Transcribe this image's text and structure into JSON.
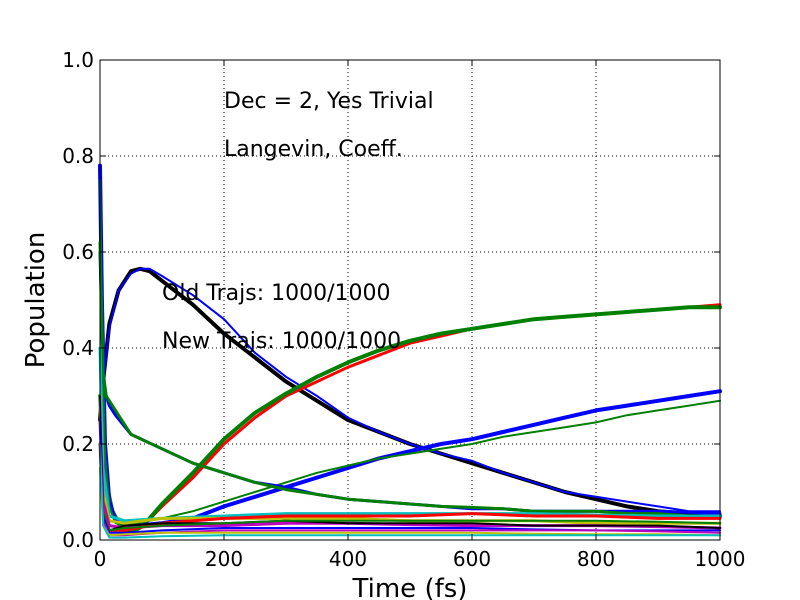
{
  "chart_data": {
    "type": "line",
    "title": "",
    "xlabel": "Time (fs)",
    "ylabel": "Population",
    "xlim": [
      0,
      1000
    ],
    "ylim": [
      0,
      1.0
    ],
    "xticks": [
      0,
      200,
      400,
      600,
      800,
      1000
    ],
    "yticks": [
      0.0,
      0.2,
      0.4,
      0.6,
      0.8,
      1.0
    ],
    "ytick_labels": [
      "0.0",
      "0.2",
      "0.4",
      "0.6",
      "0.8",
      "1.0"
    ],
    "grid": true,
    "annotations": [
      {
        "text": "Dec = 2, Yes Trivial",
        "x": 200,
        "y": 0.9
      },
      {
        "text": "Langevin, Coeff.",
        "x": 200,
        "y": 0.8
      },
      {
        "text": "Old Trajs: 1000/1000",
        "x": 100,
        "y": 0.5
      },
      {
        "text": "New Trajs: 1000/1000",
        "x": 100,
        "y": 0.4
      }
    ],
    "series": [
      {
        "color": "#000000",
        "width": 4,
        "x": [
          0,
          5,
          15,
          30,
          50,
          65,
          80,
          100,
          150,
          200,
          250,
          300,
          350,
          400,
          450,
          500,
          550,
          600,
          650,
          700,
          750,
          800,
          850,
          900,
          950,
          1000
        ],
        "y": [
          0.25,
          0.33,
          0.45,
          0.52,
          0.56,
          0.565,
          0.56,
          0.54,
          0.49,
          0.43,
          0.38,
          0.33,
          0.29,
          0.25,
          0.225,
          0.2,
          0.18,
          0.16,
          0.14,
          0.12,
          0.1,
          0.085,
          0.07,
          0.06,
          0.055,
          0.05
        ]
      },
      {
        "color": "#0000ff",
        "width": 2,
        "x": [
          0,
          5,
          15,
          30,
          50,
          65,
          80,
          100,
          150,
          200,
          250,
          300,
          350,
          400,
          450,
          500,
          550,
          600,
          650,
          700,
          750,
          800,
          850,
          900,
          950,
          1000
        ],
        "y": [
          0.24,
          0.32,
          0.44,
          0.52,
          0.555,
          0.565,
          0.565,
          0.55,
          0.51,
          0.46,
          0.39,
          0.34,
          0.3,
          0.255,
          0.225,
          0.2,
          0.18,
          0.165,
          0.14,
          0.12,
          0.1,
          0.09,
          0.08,
          0.07,
          0.06,
          0.06
        ]
      },
      {
        "color": "#ff0000",
        "width": 3,
        "x": [
          0,
          5,
          10,
          20,
          35,
          50,
          70,
          100,
          150,
          200,
          250,
          300,
          350,
          400,
          450,
          500,
          550,
          600,
          650,
          700,
          750,
          800,
          850,
          900,
          950,
          1000
        ],
        "y": [
          0.3,
          0.2,
          0.12,
          0.06,
          0.02,
          0.015,
          0.03,
          0.07,
          0.13,
          0.2,
          0.255,
          0.3,
          0.33,
          0.36,
          0.385,
          0.41,
          0.425,
          0.44,
          0.45,
          0.46,
          0.465,
          0.47,
          0.475,
          0.48,
          0.485,
          0.49
        ]
      },
      {
        "color": "#008000",
        "width": 4,
        "x": [
          0,
          5,
          10,
          20,
          35,
          50,
          70,
          100,
          150,
          200,
          250,
          300,
          350,
          400,
          450,
          500,
          550,
          600,
          650,
          700,
          750,
          800,
          850,
          900,
          950,
          1000
        ],
        "y": [
          0.3,
          0.2,
          0.12,
          0.06,
          0.025,
          0.015,
          0.03,
          0.075,
          0.14,
          0.21,
          0.265,
          0.305,
          0.34,
          0.37,
          0.395,
          0.415,
          0.43,
          0.44,
          0.45,
          0.46,
          0.465,
          0.47,
          0.475,
          0.48,
          0.485,
          0.485
        ]
      },
      {
        "color": "#0000ff",
        "width": 4,
        "x": [
          0,
          3,
          8,
          15,
          25,
          40,
          60,
          100,
          150,
          200,
          250,
          300,
          350,
          400,
          450,
          500,
          550,
          600,
          650,
          700,
          750,
          800,
          850,
          900,
          950,
          1000
        ],
        "y": [
          0.78,
          0.5,
          0.2,
          0.08,
          0.04,
          0.03,
          0.03,
          0.035,
          0.045,
          0.07,
          0.09,
          0.11,
          0.13,
          0.15,
          0.17,
          0.185,
          0.2,
          0.21,
          0.225,
          0.24,
          0.255,
          0.27,
          0.28,
          0.29,
          0.3,
          0.31
        ]
      },
      {
        "color": "#008000",
        "width": 2,
        "x": [
          0,
          3,
          8,
          15,
          25,
          40,
          60,
          100,
          150,
          200,
          250,
          300,
          350,
          400,
          450,
          500,
          550,
          600,
          650,
          700,
          750,
          800,
          850,
          900,
          950,
          1000
        ],
        "y": [
          0.75,
          0.45,
          0.18,
          0.07,
          0.035,
          0.03,
          0.035,
          0.045,
          0.06,
          0.08,
          0.1,
          0.12,
          0.14,
          0.155,
          0.17,
          0.18,
          0.19,
          0.2,
          0.215,
          0.225,
          0.235,
          0.245,
          0.26,
          0.27,
          0.28,
          0.29
        ]
      },
      {
        "color": "#0000ff",
        "width": 3,
        "x": [
          0,
          5,
          10,
          15,
          25,
          50,
          100,
          150,
          200,
          250,
          300,
          350,
          400,
          450,
          500,
          550,
          600,
          650,
          700,
          750,
          800,
          850,
          900,
          950,
          1000
        ],
        "y": [
          0.6,
          0.34,
          0.3,
          0.28,
          0.26,
          0.22,
          0.19,
          0.16,
          0.14,
          0.12,
          0.11,
          0.095,
          0.085,
          0.08,
          0.075,
          0.07,
          0.065,
          0.065,
          0.06,
          0.06,
          0.06,
          0.06,
          0.06,
          0.058,
          0.055
        ]
      },
      {
        "color": "#008000",
        "width": 3,
        "x": [
          0,
          5,
          10,
          15,
          25,
          50,
          100,
          150,
          200,
          250,
          300,
          350,
          400,
          450,
          500,
          550,
          600,
          650,
          700,
          750,
          800,
          850,
          900,
          950,
          1000
        ],
        "y": [
          0.62,
          0.35,
          0.3,
          0.29,
          0.27,
          0.22,
          0.19,
          0.16,
          0.14,
          0.12,
          0.105,
          0.095,
          0.085,
          0.08,
          0.075,
          0.07,
          0.068,
          0.065,
          0.06,
          0.06,
          0.06,
          0.055,
          0.055,
          0.05,
          0.05
        ]
      },
      {
        "color": "#00bfbf",
        "width": 3,
        "x": [
          0,
          5,
          15,
          40,
          100,
          200,
          300,
          400,
          500,
          600,
          700,
          800,
          900,
          1000
        ],
        "y": [
          0.4,
          0.15,
          0.05,
          0.04,
          0.045,
          0.05,
          0.055,
          0.055,
          0.055,
          0.055,
          0.055,
          0.052,
          0.05,
          0.05
        ]
      },
      {
        "color": "#bfbf00",
        "width": 3,
        "x": [
          0,
          5,
          15,
          40,
          100,
          200,
          300,
          400,
          500,
          600,
          700,
          800,
          900,
          1000
        ],
        "y": [
          0.3,
          0.1,
          0.04,
          0.035,
          0.045,
          0.045,
          0.045,
          0.045,
          0.04,
          0.04,
          0.04,
          0.035,
          0.035,
          0.035
        ]
      },
      {
        "color": "#bf00bf",
        "width": 3,
        "x": [
          0,
          5,
          15,
          40,
          100,
          200,
          300,
          400,
          500,
          600,
          700,
          800,
          900,
          1000
        ],
        "y": [
          0.25,
          0.08,
          0.03,
          0.025,
          0.03,
          0.03,
          0.035,
          0.035,
          0.032,
          0.03,
          0.03,
          0.03,
          0.028,
          0.025
        ]
      },
      {
        "color": "#ff0000",
        "width": 3,
        "x": [
          0,
          5,
          15,
          40,
          100,
          200,
          300,
          400,
          500,
          600,
          700,
          800,
          900,
          1000
        ],
        "y": [
          0.2,
          0.06,
          0.02,
          0.02,
          0.035,
          0.045,
          0.05,
          0.05,
          0.05,
          0.055,
          0.05,
          0.05,
          0.045,
          0.045
        ]
      },
      {
        "color": "#000000",
        "width": 2,
        "x": [
          0,
          5,
          15,
          40,
          100,
          200,
          300,
          400,
          500,
          600,
          700,
          800,
          900,
          1000
        ],
        "y": [
          0.2,
          0.05,
          0.02,
          0.03,
          0.035,
          0.035,
          0.04,
          0.035,
          0.035,
          0.035,
          0.03,
          0.03,
          0.03,
          0.025
        ]
      },
      {
        "color": "#008000",
        "width": 2,
        "x": [
          0,
          5,
          15,
          40,
          100,
          200,
          300,
          400,
          500,
          600,
          700,
          800,
          900,
          1000
        ],
        "y": [
          0.25,
          0.06,
          0.02,
          0.025,
          0.03,
          0.035,
          0.04,
          0.04,
          0.04,
          0.04,
          0.04,
          0.04,
          0.038,
          0.035
        ]
      },
      {
        "color": "#0000ff",
        "width": 2,
        "x": [
          0,
          5,
          15,
          40,
          100,
          200,
          300,
          400,
          500,
          600,
          700,
          800,
          900,
          1000
        ],
        "y": [
          0.3,
          0.05,
          0.015,
          0.015,
          0.02,
          0.025,
          0.025,
          0.025,
          0.025,
          0.025,
          0.022,
          0.02,
          0.02,
          0.02
        ]
      },
      {
        "color": "#bf00bf",
        "width": 2,
        "x": [
          0,
          5,
          15,
          40,
          100,
          200,
          300,
          400,
          500,
          600,
          700,
          800,
          900,
          1000
        ],
        "y": [
          0.2,
          0.04,
          0.01,
          0.01,
          0.015,
          0.02,
          0.02,
          0.02,
          0.02,
          0.02,
          0.02,
          0.02,
          0.018,
          0.015
        ]
      },
      {
        "color": "#bfbf00",
        "width": 2,
        "x": [
          0,
          5,
          15,
          40,
          100,
          200,
          300,
          400,
          500,
          600,
          700,
          800,
          900,
          1000
        ],
        "y": [
          0.15,
          0.03,
          0.01,
          0.012,
          0.015,
          0.015,
          0.015,
          0.015,
          0.015,
          0.015,
          0.013,
          0.012,
          0.012,
          0.01
        ]
      },
      {
        "color": "#00bfbf",
        "width": 2,
        "x": [
          0,
          5,
          15,
          40,
          100,
          200,
          300,
          400,
          500,
          600,
          700,
          800,
          900,
          1000
        ],
        "y": [
          0.2,
          0.03,
          0.005,
          0.005,
          0.008,
          0.01,
          0.01,
          0.01,
          0.01,
          0.01,
          0.01,
          0.01,
          0.01,
          0.01
        ]
      }
    ]
  }
}
